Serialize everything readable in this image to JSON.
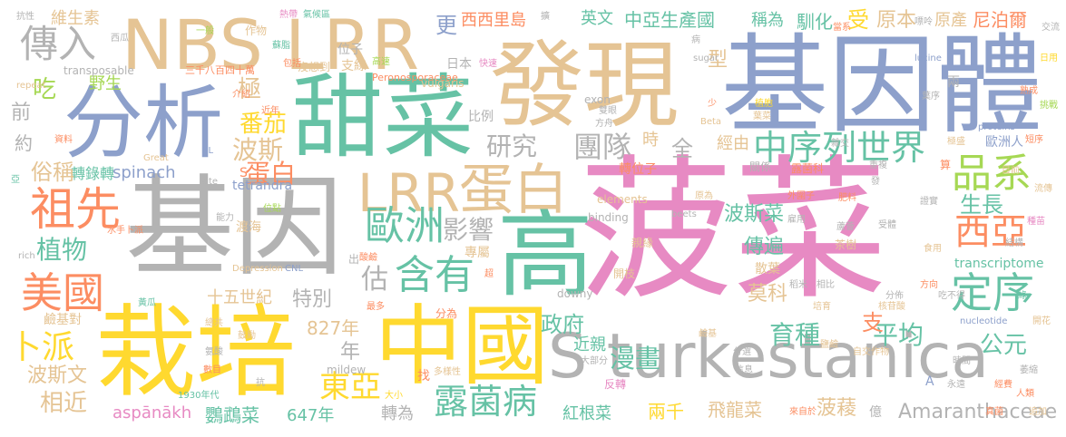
{
  "words": {
    "w_bocai": "菠菜",
    "w_jiyinti": "基因體",
    "w_faxian": "發現",
    "w_jiyin": "基因",
    "w_nbslrr": "NBS LRR",
    "w_fenxi": "分析",
    "w_tiancai": "甜菜",
    "w_zaipei": "栽培",
    "w_zhongguo": "中國",
    "w_gao": "高",
    "w_turk": "S turkestanica",
    "w_lrr": "LRR",
    "w_danbai": "蛋白",
    "w_zuxian": "祖先",
    "w_chuanru": "傳入",
    "w_ouzhou": "歐洲",
    "w_hanyou": "含有",
    "w_meiguo": "美國",
    "w_pinxi": "品系",
    "w_dingxu": "定序",
    "w_xiya": "西亞",
    "w_boluobing": "露菌病",
    "w_dongya": "東亞",
    "w_zhongxulie": "中序列世界",
    "w_tuandui": "團隊",
    "w_yanjiu": "研究",
    "w_yingxiang": "影響",
    "w_zhiwu": "植物",
    "w_pingjun": "平均",
    "w_gongyuan": "公元",
    "w_amaranth": "Amaranthaceae",
    "w_zhengfu": "政府",
    "w_yuzhong": "育種",
    "w_manhua": "漫畫",
    "w_chuanbian": "傳遍",
    "w_bosicai": "波斯菜",
    "w_shengzhang": "生長",
    "w_danbai2": "蛋白",
    "w_bosi": "波斯",
    "w_fanqie": "番茄",
    "w_spinach": "spinach",
    "w_zhuanluru": "轉錄轉",
    "w_suchen": "俗稱",
    "w_shengchan": "中亞生產國",
    "w_xixili": "西西里島",
    "w_yingwen": "英文",
    "w_chengwei": "稱為",
    "w_xunhua": "馴化",
    "w_shou": "受",
    "w_yuanben": "原本",
    "w_yuanchan": "原產",
    "w_nipoer": "尼泊爾",
    "w_weishengsu": "維生素",
    "w_geng": "更",
    "w_chi": "吃",
    "w_yesheng": "野生",
    "w_ji": "極",
    "w_qian": "前",
    "w_yue": "約",
    "w_bupai": "卜派",
    "w_xiangjin": "相近",
    "w_bosiwen": "波斯文",
    "w_aspanakh": "aspānākh",
    "w_yingwucai": "鸚鵡菜",
    "w_647": "647年",
    "w_827": "827年",
    "w_shiwushiji": "十五世紀",
    "w_tebie": "特別",
    "w_gu": "估",
    "w_nian": "年",
    "w_zhuanwei": "轉為",
    "w_hongguncai": "紅根菜",
    "w_liangqian": "兩千",
    "w_feilongcai": "飛龍菜",
    "w_boling": "菠薐",
    "w_jinqin": "近親",
    "w_moke": "莫科",
    "w_zhi": "支",
    "w_quan": "全",
    "w_shi": "時",
    "w_jingyou": "經由",
    "w_zhuanweizi": "轉位子",
    "w_tetrandra": "tetrandra",
    "w_xing": "型",
    "w_riben": "日本",
    "w_zuowu": "作物",
    "w_zhixian": "支線",
    "w_sanqian": "三千八百四十萬",
    "w_transposable": "transposable",
    "w_repeat": "repeat",
    "w_weizi": "位子",
    "w_peronos": "Peronosporaceae",
    "w_meixiang": "沒想到",
    "w_gaotu": "高速",
    "w_kangxing": "抗性",
    "w_xigua": "西瓜",
    "w_rekuang": "熱帶",
    "w_qihou": "氣候區",
    "w_suzhi": "蘇脂",
    "w_baokuo": "包括",
    "w_jiexiao": "介紹",
    "w_vulgaris": "vulgaris",
    "w_sugar": "sugar",
    "w_kuaisu": "快速",
    "w_lucine": "lucine",
    "w_liang": "兩",
    "w_bing": "病",
    "w_lianzhou": "歐洲人",
    "w_exon": "exon",
    "w_beta": "Beta",
    "w_proteins": "proteins",
    "w_guanxi": "關係",
    "w_loujunke": "露菌科",
    "w_zhengchang": "重複",
    "w_waiwei": "外圍子",
    "w_yuanwei": "原為",
    "w_shengchan2": "雇用",
    "w_elements": "elements",
    "w_beets": "beets",
    "w_binding": "binding",
    "w_transcriptome": "transcriptome",
    "w_qinyuan": "親緣",
    "w_zhuanshu": "專屬",
    "w_kaizhi": "開枝",
    "w_sancai": "散葉",
    "w_chashu": "茶樹",
    "w_shouti": "受體",
    "w_lushu": "蘆薈",
    "w_bili": "比例",
    "w_jinian": "近年",
    "w_ziliao": "資料",
    "w_nl": "NL",
    "w_great": "Great",
    "w_site": "site",
    "w_nengli": "能力",
    "w_weidian": "位點",
    "w_dutian": "渡海",
    "w_shuishou": "水手卜派",
    "w_rich": "rich",
    "w_depression": "Depression",
    "w_cnl": "CNL",
    "w_chu": "出",
    "w_suanjian": "酸鹼",
    "w_chao": "超",
    "w_downy": "downy",
    "w_huanggua": "黃瓜",
    "w_lianjiduan": "鹼基對",
    "w_zongshi": "總共",
    "w_gudong": "鼓勵",
    "w_fenwei": "分為",
    "w_zuiduo": "最多",
    "w_mildew": "mildew",
    "w_zhao": "找",
    "w_duoyangxing": "多樣性",
    "w_anquan": "氨酸",
    "w_shuzi": "數目",
    "w_1930": "1930年代",
    "w_kang": "抗",
    "w_dadi": "大小",
    "w_fanzhuan": "反轉",
    "w_damu": "大部分",
    "w_fenxuan": "分選",
    "w_xinxi": "信息",
    "w_nucleotide": "nucleotide",
    "w_jiannu": "核苷酸",
    "w_kaihua": "開花",
    "w_zijiao": "自交作物",
    "w_shijian": "時間",
    "w_liangjiu": "相比",
    "w_chibuxia": "吃不得",
    "w_fangxiang": "方向",
    "w_shiyong": "食用",
    "w_yi": "億",
    "w_laizi": "來自於",
    "w_a": "A",
    "w_yongyuan": "永遠",
    "w_jingui": "經費",
    "w_zuidi": "極盛",
    "w_zhongmi": "稻米",
    "w_jingshou": "鹼基",
    "w_yinzi": "嘌呤",
    "w_jiaoliu": "交流",
    "w_chengzhang": "熟成",
    "w_duanxu": "短序",
    "w_liuchuan": "流傳",
    "w_shao": "少",
    "w_peiyu": "培育",
    "w_yahua": "亞",
    "w_yiban": "一般",
    "w_jiangao": "雜交",
    "w_feiju": "肥料",
    "w_zhuan": "算",
    "w_shuangyan": "雙眼",
    "w_fangzhou": "方舟",
    "w_zhibai": "植胞",
    "w_shuye": "葉菜",
    "w_dangsu": "當系",
    "w_liushi": "萎縮",
    "w_zhuijia": "追加",
    "w_qingchu": "真菌",
    "w_yenju": "葉序",
    "w_muqian": "目前",
    "w_kuo": "擴",
    "w_zhengjie": "證實",
    "w_shan": "鹽鹼",
    "w_lv": "綠",
    "w_s": "S",
    "w_fa": "發",
    "w_fenbu": "分佈",
    "w_renlei": "人類",
    "w_riyong": "日用",
    "w_tiaozhan": "挑戰",
    "w_zhongtu": "種苗",
    "w_jiegou": "結構"
  }
}
